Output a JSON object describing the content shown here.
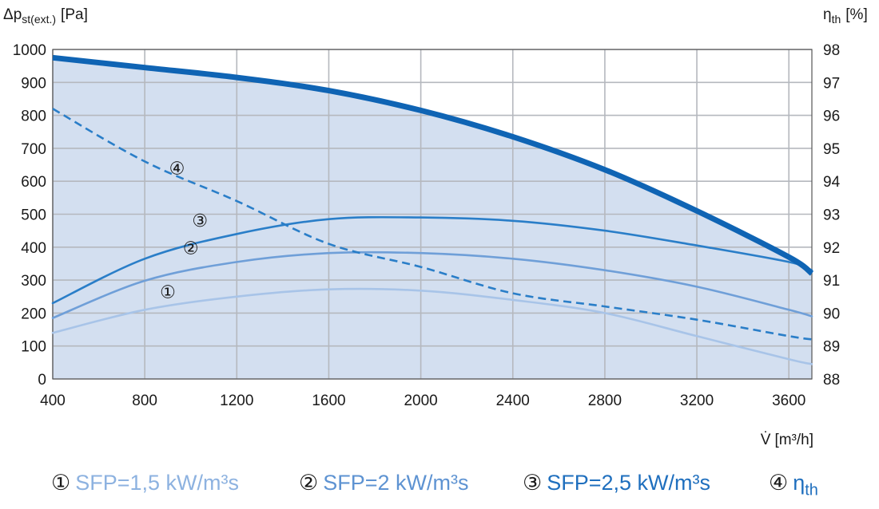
{
  "chart_data": {
    "type": "line",
    "ylabel": {
      "main": "Δp",
      "sub": "st(ext.)",
      "unit": "[Pa]"
    },
    "y2label": {
      "main": "η",
      "sub": "th",
      "unit": "[%]"
    },
    "xlabel": {
      "main": "V̇",
      "unit": "[m³/h]"
    },
    "xlim": [
      400,
      3700
    ],
    "ylim": [
      0,
      1000
    ],
    "y2lim": [
      88,
      98
    ],
    "x_ticks": [
      400,
      800,
      1200,
      1600,
      2000,
      2400,
      2800,
      3200,
      3600
    ],
    "y_ticks": [
      0,
      100,
      200,
      300,
      400,
      500,
      600,
      700,
      800,
      900,
      1000
    ],
    "y2_ticks": [
      88,
      89,
      90,
      91,
      92,
      93,
      94,
      95,
      96,
      97,
      98
    ],
    "grid": true,
    "envelope": {
      "x": [
        400,
        800,
        1200,
        1600,
        2000,
        2400,
        2800,
        3200,
        3600,
        3700
      ],
      "y": [
        975,
        945,
        915,
        875,
        815,
        735,
        635,
        510,
        370,
        320
      ]
    },
    "series": [
      {
        "label": "①",
        "axis": "left",
        "color": "#a8c4e8",
        "dash": false,
        "x": [
          400,
          800,
          1200,
          1600,
          2000,
          2400,
          2800,
          3200,
          3600,
          3700
        ],
        "y": [
          140,
          210,
          250,
          272,
          268,
          240,
          200,
          130,
          60,
          45
        ]
      },
      {
        "label": "②",
        "axis": "left",
        "color": "#6f9fd8",
        "dash": false,
        "x": [
          400,
          800,
          1200,
          1600,
          2000,
          2400,
          2800,
          3200,
          3600,
          3700
        ],
        "y": [
          185,
          298,
          355,
          382,
          382,
          365,
          330,
          280,
          210,
          190
        ]
      },
      {
        "label": "③",
        "axis": "left",
        "color": "#2a7ec8",
        "dash": false,
        "x": [
          400,
          800,
          1200,
          1600,
          2000,
          2400,
          2800,
          3200,
          3600,
          3700
        ],
        "y": [
          230,
          365,
          440,
          485,
          490,
          480,
          450,
          405,
          355,
          330
        ]
      },
      {
        "label": "④",
        "axis": "right",
        "color": "#2a7ec8",
        "dash": true,
        "x": [
          400,
          800,
          1200,
          1600,
          2000,
          2400,
          2800,
          3200,
          3600,
          3700
        ],
        "y": [
          96.2,
          94.6,
          93.4,
          92.1,
          91.4,
          90.6,
          90.2,
          89.8,
          89.3,
          89.2
        ]
      }
    ],
    "legend": [
      {
        "marker": "①",
        "text": "SFP=1,5 kW/m³s",
        "color": "#8db2e0"
      },
      {
        "marker": "②",
        "text": "SFP=2 kW/m³s",
        "color": "#5e93d2"
      },
      {
        "marker": "③",
        "text": "SFP=2,5 kW/m³s",
        "color": "#1f6fbe"
      },
      {
        "marker": "④",
        "text": "η",
        "sub": "th",
        "color": "#1f6fbe"
      }
    ]
  }
}
